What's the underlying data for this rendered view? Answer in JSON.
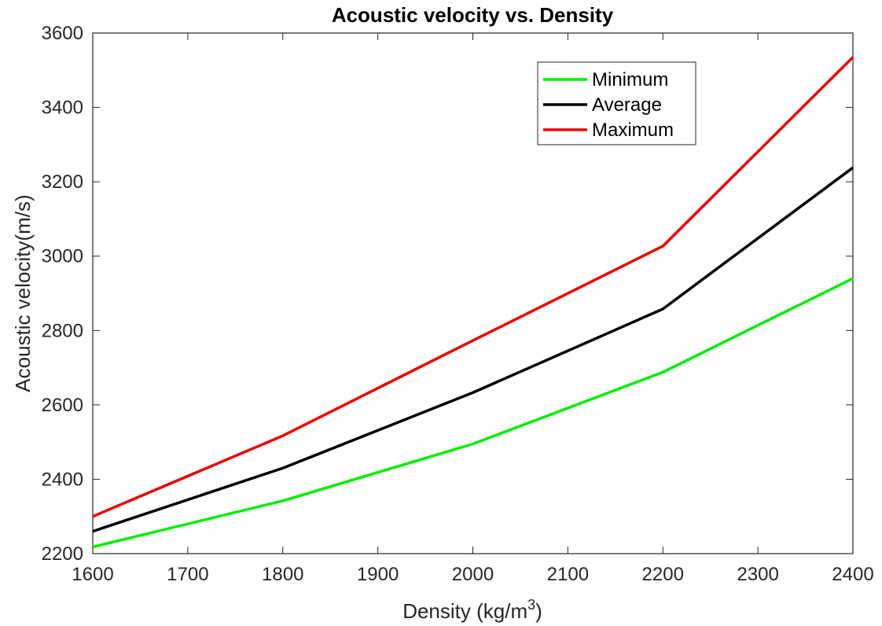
{
  "chart_data": {
    "type": "line",
    "title": "Acoustic velocity vs. Density",
    "xlabel": "Density (kg/m",
    "xlabel_superscript": "3",
    "xlabel_suffix": ")",
    "ylabel": "Acoustic velocity(m/s)",
    "xlim": [
      1600,
      2400
    ],
    "ylim": [
      2200,
      3600
    ],
    "xticks": [
      "1600",
      "1700",
      "1800",
      "1900",
      "2000",
      "2100",
      "2200",
      "2300",
      "2400"
    ],
    "yticks": [
      "2200",
      "2400",
      "2600",
      "2800",
      "3000",
      "3200",
      "3400",
      "3600"
    ],
    "x": [
      1600,
      1800,
      2000,
      2200,
      2400
    ],
    "series": [
      {
        "name": "Minimum",
        "color": "#00ee00",
        "values": [
          2218,
          2342,
          2495,
          2688,
          2940
        ]
      },
      {
        "name": "Average",
        "color": "#000000",
        "values": [
          2260,
          2430,
          2633,
          2858,
          3238
        ]
      },
      {
        "name": "Maximum",
        "color": "#ee0000",
        "values": [
          2300,
          2517,
          2773,
          3027,
          3535
        ]
      }
    ],
    "legend_position": "top-right",
    "grid": false
  }
}
